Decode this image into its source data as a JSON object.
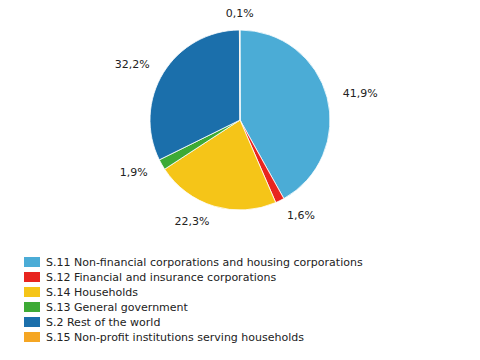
{
  "chart_data": {
    "type": "pie",
    "categories": [
      "S.11 Non-financial corporations and housing corporations",
      "S.12 Financial and insurance corporations",
      "S.14 Households",
      "S.13 General government",
      "S.2 Rest of the world",
      "S.15 Non-profit institutions serving households"
    ],
    "values": [
      41.9,
      1.6,
      22.3,
      1.9,
      32.2,
      0.1
    ],
    "value_labels": [
      "41,9%",
      "1,6%",
      "22,3%",
      "1,9%",
      "32,2%",
      "0,1%"
    ],
    "colors": [
      "#4BACD6",
      "#E8251F",
      "#F5C518",
      "#3DAA35",
      "#1B6FAB",
      "#F5A623"
    ],
    "data_labels": true,
    "legend": "bottom"
  }
}
